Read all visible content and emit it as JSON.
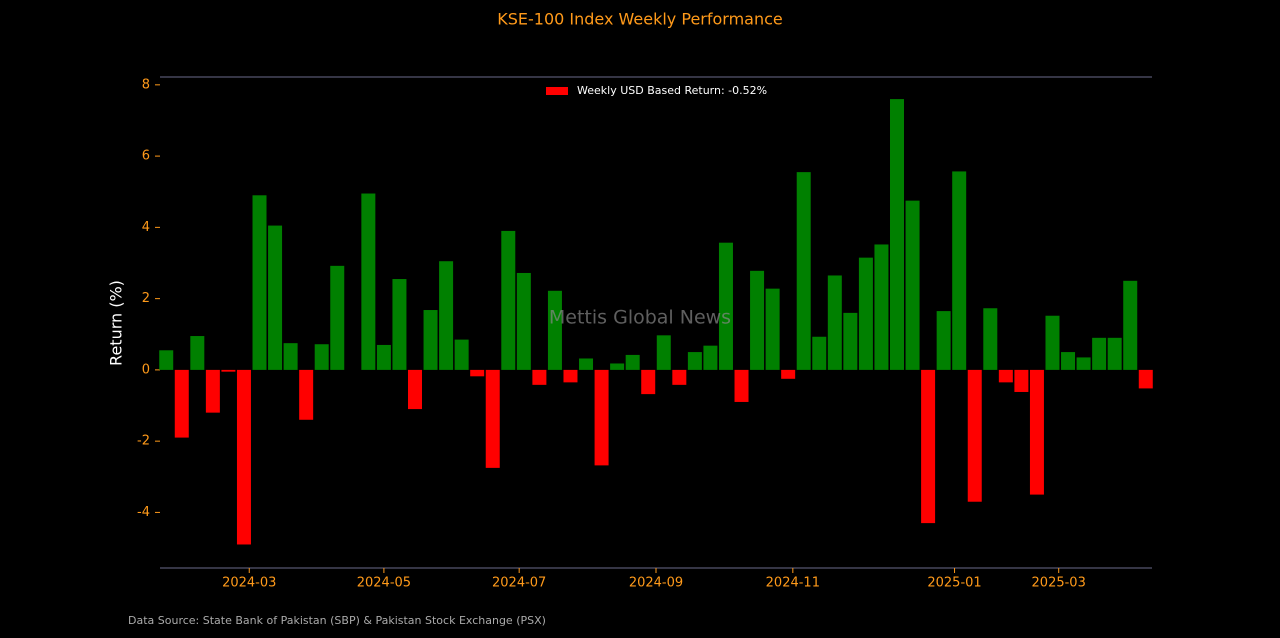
{
  "chart_data": {
    "type": "bar",
    "title": "KSE-100 Index Weekly Performance",
    "y_label": "Return (%)",
    "watermark": "Mettis Global News",
    "source": "Data Source: State Bank of Pakistan (SBP) & Pakistan Stock Exchange (PSX)",
    "x": [
      0,
      1,
      2,
      3,
      4,
      5,
      6,
      7,
      8,
      9,
      10,
      11,
      12,
      13,
      14,
      15,
      16,
      17,
      18,
      19,
      20,
      21,
      22,
      23,
      24,
      25,
      26,
      27,
      28,
      29,
      30,
      31,
      32,
      33,
      34,
      35,
      36,
      37,
      38,
      39,
      40,
      41,
      42,
      43,
      44,
      45,
      46,
      47,
      48,
      49,
      50,
      51,
      52,
      53,
      54,
      55,
      56,
      57,
      58,
      59,
      60,
      61,
      62,
      63
    ],
    "series": [
      {
        "name": "Weekly USD Based Return: -0.52%",
        "color": "#ff0000",
        "values": [
          0.55,
          -1.9,
          0.95,
          -1.2,
          -0.05,
          -4.9,
          4.9,
          4.05,
          0.75,
          -1.4,
          0.72,
          2.92,
          0,
          4.95,
          0.7,
          2.55,
          -1.1,
          1.68,
          3.05,
          0.85,
          -0.18,
          -2.75,
          3.9,
          2.72,
          -0.42,
          2.22,
          -0.35,
          0.32,
          -2.68,
          0.18,
          0.42,
          -0.68,
          0.97,
          -0.42,
          0.5,
          0.68,
          3.57,
          -0.9,
          2.78,
          2.28,
          -0.25,
          5.55,
          0.93,
          2.65,
          1.6,
          3.15,
          3.52,
          7.6,
          4.75,
          -4.3,
          1.65,
          5.57,
          -3.7,
          1.73,
          -0.35,
          -0.62,
          -3.5,
          1.52,
          0.5,
          0.35,
          0.9,
          0.9,
          2.5,
          -0.52
        ]
      }
    ],
    "positive_color": "#008000",
    "negative_color": "#ff0000",
    "xlim": [
      -0.4,
      63.4
    ],
    "xticks": [
      {
        "value": 5.34,
        "label": "2024-03"
      },
      {
        "value": 14.0,
        "label": "2024-05"
      },
      {
        "value": 22.7,
        "label": "2024-07"
      },
      {
        "value": 31.5,
        "label": "2024-09"
      },
      {
        "value": 40.3,
        "label": "2024-11"
      },
      {
        "value": 50.7,
        "label": "2025-01"
      },
      {
        "value": 57.4,
        "label": "2025-03"
      }
    ],
    "ylim": [
      -5.56,
      8.22
    ],
    "yticks": [
      -4,
      -2,
      0,
      2,
      4,
      6,
      8
    ],
    "legend": "upper center"
  }
}
